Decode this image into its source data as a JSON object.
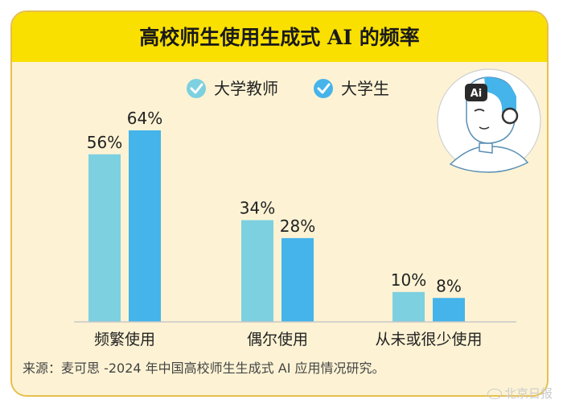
{
  "chart_data": {
    "type": "bar",
    "title": "高校师生使用生成式 AI 的频率",
    "categories": [
      "频繁使用",
      "偶尔使用",
      "从未或很少使用"
    ],
    "series": [
      {
        "name": "大学教师",
        "values": [
          56,
          34,
          10
        ],
        "labels": [
          "56%",
          "34%",
          "10%"
        ],
        "color": "#7dd0e0"
      },
      {
        "name": "大学生",
        "values": [
          64,
          28,
          8
        ],
        "labels": [
          "64%",
          "28%",
          "8%"
        ],
        "color": "#45b4ea"
      }
    ],
    "ylim": [
      0,
      64
    ],
    "legend": "top-center",
    "grid": false,
    "baseline_color": "#c8c8c8"
  },
  "source": "来源：麦可思 -2024 年中国高校师生生成式 AI 应用情况研究。",
  "illustration": {
    "badge": "Ai"
  },
  "watermark": "北京日报",
  "colors": {
    "frame_bg": "#fdf3d4",
    "title_bar": "#f9e000",
    "frame_border": "#e6bf4e"
  }
}
